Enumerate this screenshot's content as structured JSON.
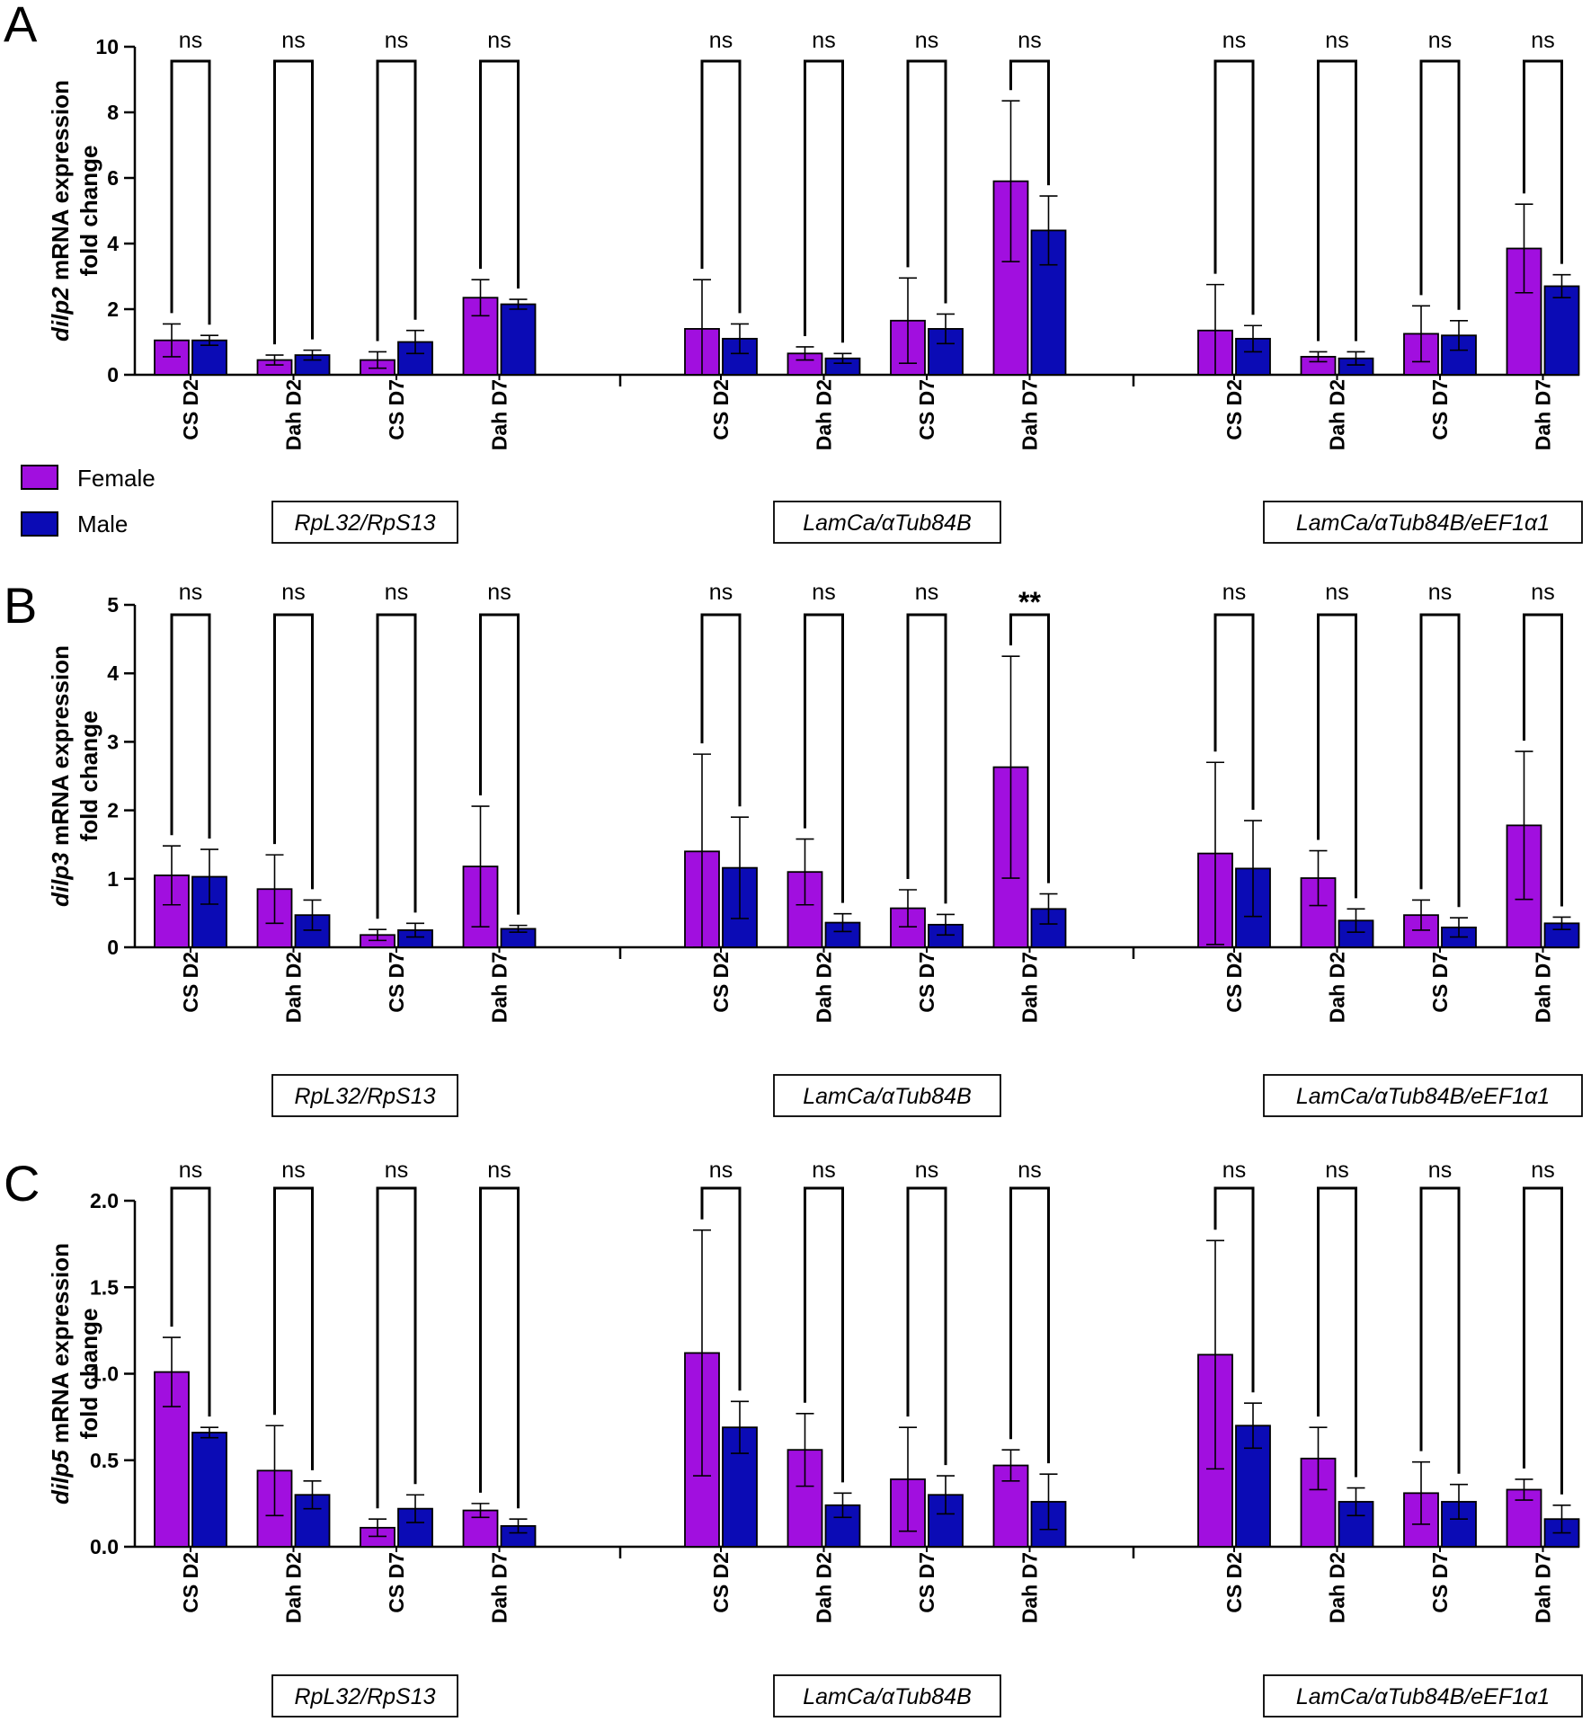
{
  "colors": {
    "female": "#a10fdf",
    "male": "#0b0bb5",
    "axis": "#000000"
  },
  "legend": {
    "female_label": "Female",
    "male_label": "Male"
  },
  "categories": [
    "CS D2",
    "Dah D2",
    "CS D7",
    "Dah D7"
  ],
  "normalizations": [
    "RpL32/RpS13",
    "LamCa/αTub84B",
    "LamCa/αTub84B/eEF1α1"
  ],
  "chart_data": [
    {
      "type": "bar",
      "panel": "A",
      "gene": "dilp2",
      "ylabel_rest": " mRNA expression",
      "ylabel_line2": "fold change",
      "ylim": [
        0,
        10
      ],
      "yticks": [
        "0",
        "2",
        "4",
        "6",
        "8",
        "10"
      ],
      "groups": [
        {
          "norm": "RpL32/RpS13",
          "female": [
            1.05,
            0.45,
            0.45,
            2.35
          ],
          "female_err": [
            0.5,
            0.15,
            0.25,
            0.55
          ],
          "male": [
            1.05,
            0.6,
            1.0,
            2.15
          ],
          "male_err": [
            0.15,
            0.15,
            0.35,
            0.15
          ],
          "sig": [
            "ns",
            "ns",
            "ns",
            "ns"
          ]
        },
        {
          "norm": "LamCa/αTub84B",
          "female": [
            1.4,
            0.65,
            1.65,
            5.9
          ],
          "female_err": [
            1.5,
            0.2,
            1.3,
            2.45
          ],
          "male": [
            1.1,
            0.5,
            1.4,
            4.4
          ],
          "male_err": [
            0.45,
            0.15,
            0.45,
            1.05
          ],
          "sig": [
            "ns",
            "ns",
            "ns",
            "ns"
          ]
        },
        {
          "norm": "LamCa/αTub84B/eEF1α1",
          "female": [
            1.35,
            0.55,
            1.25,
            3.85
          ],
          "female_err": [
            1.4,
            0.15,
            0.85,
            1.35
          ],
          "male": [
            1.1,
            0.5,
            1.2,
            2.7
          ],
          "male_err": [
            0.4,
            0.2,
            0.45,
            0.35
          ],
          "sig": [
            "ns",
            "ns",
            "ns",
            "ns"
          ]
        }
      ]
    },
    {
      "type": "bar",
      "panel": "B",
      "gene": "dilp3",
      "ylabel_rest": " mRNA expression",
      "ylabel_line2": "fold change",
      "ylim": [
        0,
        5
      ],
      "yticks": [
        "0",
        "1",
        "2",
        "3",
        "4",
        "5"
      ],
      "groups": [
        {
          "norm": "RpL32/RpS13",
          "female": [
            1.05,
            0.85,
            0.18,
            1.18
          ],
          "female_err": [
            0.43,
            0.5,
            0.08,
            0.88
          ],
          "male": [
            1.03,
            0.47,
            0.25,
            0.27
          ],
          "male_err": [
            0.4,
            0.22,
            0.1,
            0.05
          ],
          "sig": [
            "ns",
            "ns",
            "ns",
            "ns"
          ]
        },
        {
          "norm": "LamCa/αTub84B",
          "female": [
            1.4,
            1.1,
            0.57,
            2.63
          ],
          "female_err": [
            1.42,
            0.48,
            0.27,
            1.62
          ],
          "male": [
            1.16,
            0.36,
            0.33,
            0.56
          ],
          "male_err": [
            0.74,
            0.13,
            0.15,
            0.22
          ],
          "sig": [
            "ns",
            "ns",
            "ns",
            "**"
          ]
        },
        {
          "norm": "LamCa/αTub84B/eEF1α1",
          "female": [
            1.37,
            1.01,
            0.47,
            1.78
          ],
          "female_err": [
            1.33,
            0.4,
            0.22,
            1.08
          ],
          "male": [
            1.15,
            0.39,
            0.29,
            0.35
          ],
          "male_err": [
            0.7,
            0.17,
            0.14,
            0.09
          ],
          "sig": [
            "ns",
            "ns",
            "ns",
            "ns"
          ]
        }
      ]
    },
    {
      "type": "bar",
      "panel": "C",
      "gene": "dilp5",
      "ylabel_rest": " mRNA expression",
      "ylabel_line2": "fold change",
      "ylim": [
        0,
        2
      ],
      "yticks": [
        "0.0",
        "0.5",
        "1.0",
        "1.5",
        "2.0"
      ],
      "groups": [
        {
          "norm": "RpL32/RpS13",
          "female": [
            1.01,
            0.44,
            0.11,
            0.21
          ],
          "female_err": [
            0.2,
            0.26,
            0.05,
            0.04
          ],
          "male": [
            0.66,
            0.3,
            0.22,
            0.12
          ],
          "male_err": [
            0.03,
            0.08,
            0.08,
            0.04
          ],
          "sig": [
            "ns",
            "ns",
            "ns",
            "ns"
          ]
        },
        {
          "norm": "LamCa/αTub84B",
          "female": [
            1.12,
            0.56,
            0.39,
            0.47
          ],
          "female_err": [
            0.71,
            0.21,
            0.3,
            0.09
          ],
          "male": [
            0.69,
            0.24,
            0.3,
            0.26
          ],
          "male_err": [
            0.15,
            0.07,
            0.11,
            0.16
          ],
          "sig": [
            "ns",
            "ns",
            "ns",
            "ns"
          ]
        },
        {
          "norm": "LamCa/αTub84B/eEF1α1",
          "female": [
            1.11,
            0.51,
            0.31,
            0.33
          ],
          "female_err": [
            0.66,
            0.18,
            0.18,
            0.06
          ],
          "male": [
            0.7,
            0.26,
            0.26,
            0.16
          ],
          "male_err": [
            0.13,
            0.08,
            0.1,
            0.08
          ],
          "sig": [
            "ns",
            "ns",
            "ns",
            "ns"
          ]
        }
      ]
    }
  ]
}
